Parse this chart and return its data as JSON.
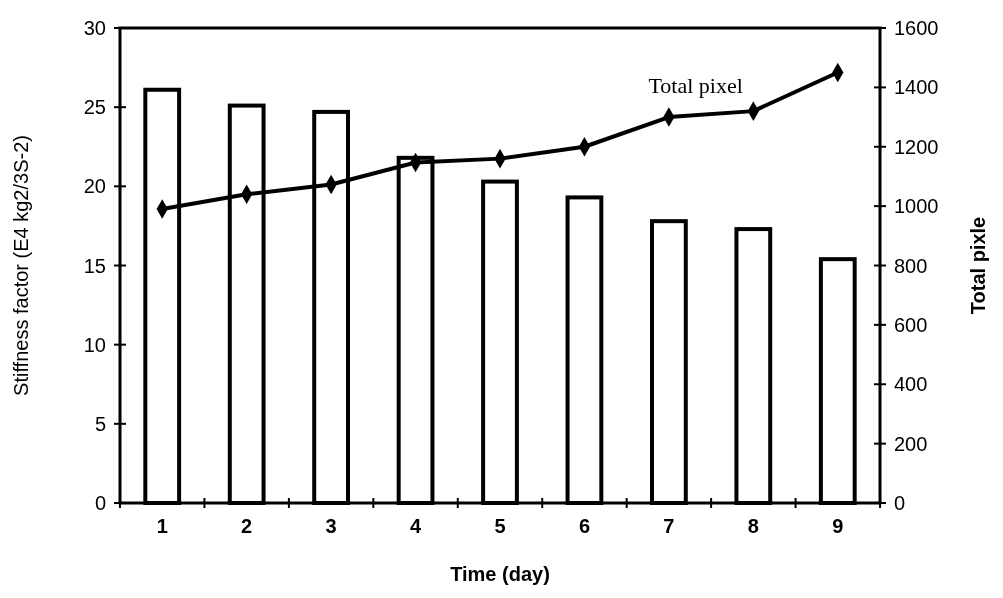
{
  "chart_data": {
    "type": "bar",
    "xlabel": "Time (day)",
    "ylabel": "Stiffness factor (E4 kg2/3S-2)",
    "y2label": "Total pixle",
    "categories": [
      "1",
      "2",
      "3",
      "4",
      "5",
      "6",
      "7",
      "8",
      "9"
    ],
    "series": [
      {
        "color": "#ffffff",
        "values": [
          26.1,
          25.1,
          24.7,
          21.8,
          20.3,
          19.3,
          17.8,
          17.3,
          15.4
        ]
      },
      {
        "type": "line",
        "name": "Total pixel",
        "axis": "y2",
        "color": "#000000",
        "marker": "diamond",
        "values": [
          990,
          1040,
          1073,
          1147,
          1160,
          1200,
          1300,
          1320,
          1450
        ]
      }
    ],
    "ylim": [
      0,
      30
    ],
    "yticks": [
      0,
      5,
      10,
      15,
      20,
      25,
      30
    ],
    "y2lim": [
      0,
      1600
    ],
    "y2ticks": [
      0,
      200,
      400,
      600,
      800,
      1000,
      1200,
      1400,
      1600
    ],
    "grid": false
  }
}
